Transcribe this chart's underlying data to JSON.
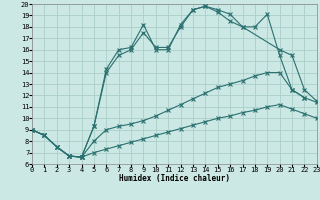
{
  "xlabel": "Humidex (Indice chaleur)",
  "bg_color": "#cce8e4",
  "grid_color": "#aad0c8",
  "line_color": "#2a7070",
  "xlim": [
    0,
    23
  ],
  "ylim": [
    6,
    20
  ],
  "xticks": [
    0,
    1,
    2,
    3,
    4,
    5,
    6,
    7,
    8,
    9,
    10,
    11,
    12,
    13,
    14,
    15,
    16,
    17,
    18,
    19,
    20,
    21,
    22,
    23
  ],
  "yticks": [
    6,
    7,
    8,
    9,
    10,
    11,
    12,
    13,
    14,
    15,
    16,
    17,
    18,
    19,
    20
  ],
  "line1_x": [
    0,
    1,
    2,
    3,
    4,
    5,
    6,
    7,
    8,
    9,
    10,
    11,
    12,
    13,
    14,
    15,
    16,
    17,
    18,
    19,
    20,
    21,
    22,
    23
  ],
  "line1_y": [
    9.0,
    8.5,
    7.5,
    6.7,
    6.6,
    7.0,
    7.3,
    7.6,
    7.9,
    8.2,
    8.5,
    8.8,
    9.1,
    9.4,
    9.7,
    10.0,
    10.2,
    10.5,
    10.7,
    11.0,
    11.2,
    10.8,
    10.4,
    10.0
  ],
  "line2_x": [
    0,
    1,
    2,
    3,
    4,
    5,
    6,
    7,
    8,
    9,
    10,
    11,
    12,
    13,
    14,
    15,
    16,
    17,
    18,
    19,
    20,
    21,
    22,
    23
  ],
  "line2_y": [
    9.0,
    8.5,
    7.5,
    6.7,
    6.6,
    8.0,
    9.0,
    9.3,
    9.5,
    9.8,
    10.2,
    10.7,
    11.2,
    11.7,
    12.2,
    12.7,
    13.0,
    13.3,
    13.7,
    14.0,
    14.0,
    12.5,
    11.8,
    11.4
  ],
  "line3_x": [
    0,
    1,
    2,
    3,
    4,
    5,
    6,
    7,
    8,
    9,
    10,
    11,
    12,
    13,
    14,
    15,
    16,
    17,
    20,
    21,
    22,
    23
  ],
  "line3_y": [
    9.0,
    8.5,
    7.5,
    6.7,
    6.6,
    9.3,
    14.0,
    15.5,
    16.0,
    17.5,
    16.2,
    16.2,
    18.0,
    19.5,
    19.8,
    19.3,
    18.5,
    18.0,
    16.0,
    15.5,
    12.5,
    11.5
  ],
  "line4_x": [
    0,
    1,
    2,
    3,
    4,
    5,
    6,
    7,
    8,
    9,
    10,
    11,
    12,
    13,
    14,
    15,
    16,
    17,
    18,
    19,
    20,
    21,
    22
  ],
  "line4_y": [
    9.0,
    8.5,
    7.5,
    6.7,
    6.6,
    9.3,
    14.3,
    16.0,
    16.2,
    18.2,
    16.0,
    16.0,
    18.2,
    19.5,
    19.8,
    19.5,
    19.1,
    18.0,
    18.0,
    19.1,
    15.5,
    12.5,
    11.8
  ]
}
